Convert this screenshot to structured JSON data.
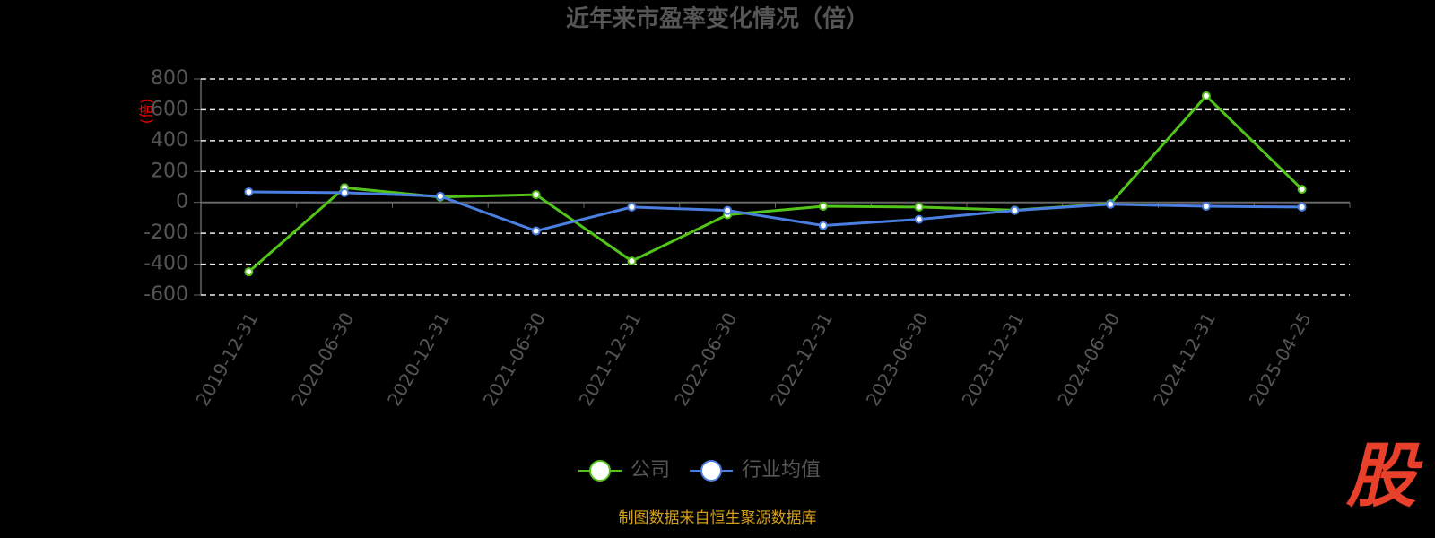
{
  "chart_data": {
    "type": "line",
    "title": "近年来市盈率变化情况（倍）",
    "y_label": "(倍)",
    "categories": [
      "2019-12-31",
      "2020-06-30",
      "2020-12-31",
      "2021-06-30",
      "2021-12-31",
      "2022-06-30",
      "2022-12-31",
      "2023-06-30",
      "2023-12-31",
      "2024-06-30",
      "2024-12-31",
      "2025-04-25"
    ],
    "series": [
      {
        "name": "公司",
        "color": "#52c41a",
        "values": [
          -450,
          95,
          35,
          50,
          -380,
          -80,
          -25,
          -30,
          -50,
          -8,
          690,
          85
        ]
      },
      {
        "name": "行业均值",
        "color": "#4a7ee0",
        "values": [
          68,
          63,
          40,
          -185,
          -30,
          -52,
          -150,
          -110,
          -52,
          -12,
          -25,
          -30
        ]
      }
    ],
    "ylim": [
      -600,
      800
    ],
    "yticks": [
      -600,
      -400,
      -200,
      0,
      200,
      400,
      600,
      800
    ],
    "grid": true,
    "source": "制图数据来自恒生聚源数据库",
    "watermark": "股"
  }
}
